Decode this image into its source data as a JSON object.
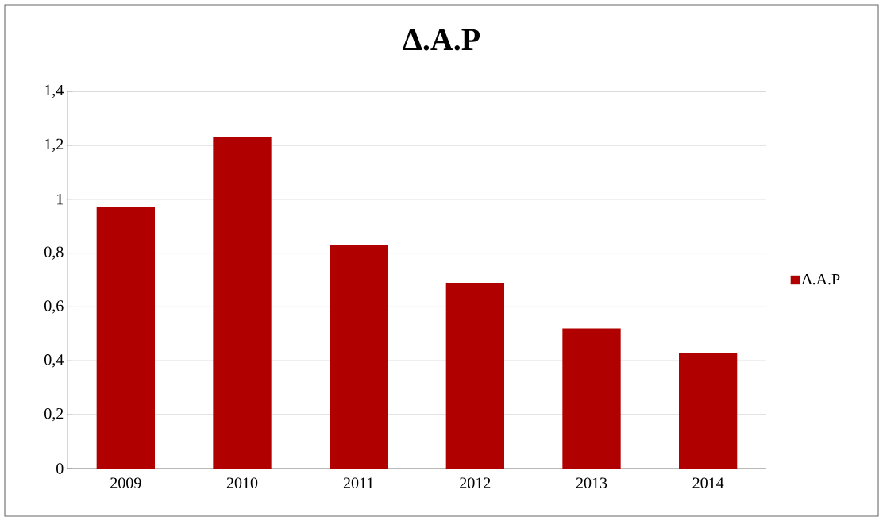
{
  "chart_data": {
    "type": "bar",
    "title": "Δ.Α.Ρ",
    "categories": [
      "2009",
      "2010",
      "2011",
      "2012",
      "2013",
      "2014"
    ],
    "series": [
      {
        "name": "Δ.Α.Ρ",
        "color": "#b00000",
        "values": [
          0.97,
          1.23,
          0.83,
          0.69,
          0.52,
          0.43
        ]
      }
    ],
    "ylim": [
      0,
      1.4
    ],
    "yticks": [
      0,
      {
        "value": 0.2,
        "label": "0,2"
      },
      {
        "value": 0.4,
        "label": "0,4"
      },
      {
        "value": 0.6,
        "label": "0,6"
      },
      {
        "value": 0.8,
        "label": "0,8"
      },
      1,
      {
        "value": 1.2,
        "label": "1,2"
      },
      {
        "value": 1.4,
        "label": "1,4"
      }
    ],
    "grid": "y",
    "legend": "right"
  }
}
